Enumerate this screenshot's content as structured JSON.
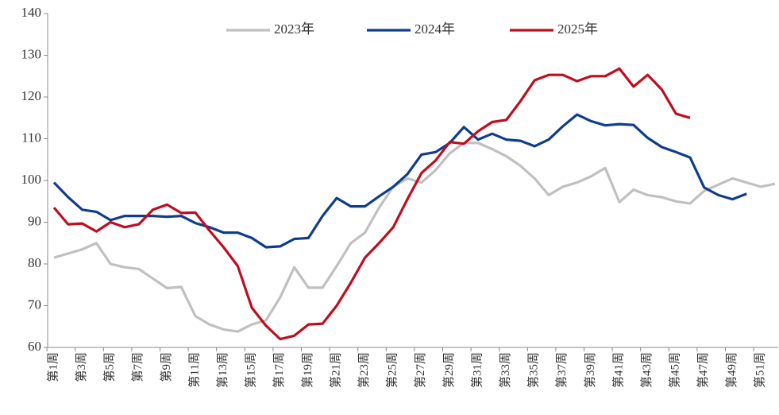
{
  "chart_data": {
    "type": "line",
    "categories": [
      "第1周",
      null,
      "第3周",
      null,
      "第5周",
      null,
      "第7周",
      null,
      "第9周",
      null,
      "第11周",
      null,
      "第13周",
      null,
      "第15周",
      null,
      "第17周",
      null,
      "第19周",
      null,
      "第21周",
      null,
      "第23周",
      null,
      "第25周",
      null,
      "第27周",
      null,
      "第29周",
      null,
      "第31周",
      null,
      "第33周",
      null,
      "第35周",
      null,
      "第37周",
      null,
      "第39周",
      null,
      "第41周",
      null,
      "第43周",
      null,
      "第45周",
      null,
      "第47周",
      null,
      "第49周",
      null,
      "第51周",
      null
    ],
    "series": [
      {
        "name": "2023年",
        "color": "#c0c0c0",
        "values": [
          81.5,
          82.5,
          83.5,
          85,
          80,
          79.2,
          78.8,
          76.5,
          74.2,
          74.5,
          67.5,
          65.5,
          64.3,
          63.8,
          65.5,
          66.5,
          72,
          79.2,
          74.3,
          74.3,
          79.5,
          85,
          87.5,
          93.5,
          98.5,
          100.5,
          99.5,
          102.5,
          106.5,
          109,
          109,
          107.5,
          105.8,
          103.5,
          100.5,
          96.5,
          98.5,
          99.5,
          101,
          103,
          94.8,
          97.8,
          96.5,
          96,
          95,
          94.5,
          97.5,
          99,
          100.5,
          99.5,
          98.5,
          99.2
        ]
      },
      {
        "name": "2024年",
        "color": "#0f3d8c",
        "values": [
          99.5,
          96,
          93,
          92.5,
          90.5,
          91.5,
          91.5,
          91.5,
          91.3,
          91.5,
          89.8,
          88.8,
          87.5,
          87.5,
          86.2,
          84,
          84.2,
          86,
          86.2,
          91.5,
          95.8,
          93.8,
          93.8,
          96.2,
          98.5,
          101.5,
          106.2,
          106.8,
          109,
          112.8,
          109.8,
          111.2,
          109.8,
          109.5,
          108.2,
          109.8,
          113,
          115.8,
          114.2,
          113.2,
          113.5,
          113.3,
          110.2,
          108,
          106.8,
          105.5,
          98.3,
          96.5,
          95.5,
          96.8,
          null,
          null
        ]
      },
      {
        "name": "2025年",
        "color": "#c00d1e",
        "values": [
          93.5,
          89.5,
          89.7,
          87.8,
          90,
          88.8,
          89.5,
          93,
          94.2,
          92.2,
          92.3,
          88,
          84,
          79.5,
          69.5,
          65.2,
          62,
          62.8,
          65.5,
          65.7,
          70,
          75.5,
          81.5,
          85,
          88.8,
          95.5,
          101.8,
          104.8,
          109.2,
          108.8,
          111.8,
          114,
          114.5,
          119,
          124,
          125.3,
          125.3,
          123.8,
          125,
          125,
          126.8,
          122.5,
          125.3,
          121.8,
          116,
          115,
          null,
          null,
          null,
          null,
          null,
          null
        ]
      }
    ],
    "ylim": [
      60,
      140
    ],
    "yticks": [
      60,
      70,
      80,
      90,
      100,
      110,
      120,
      130,
      140
    ]
  }
}
